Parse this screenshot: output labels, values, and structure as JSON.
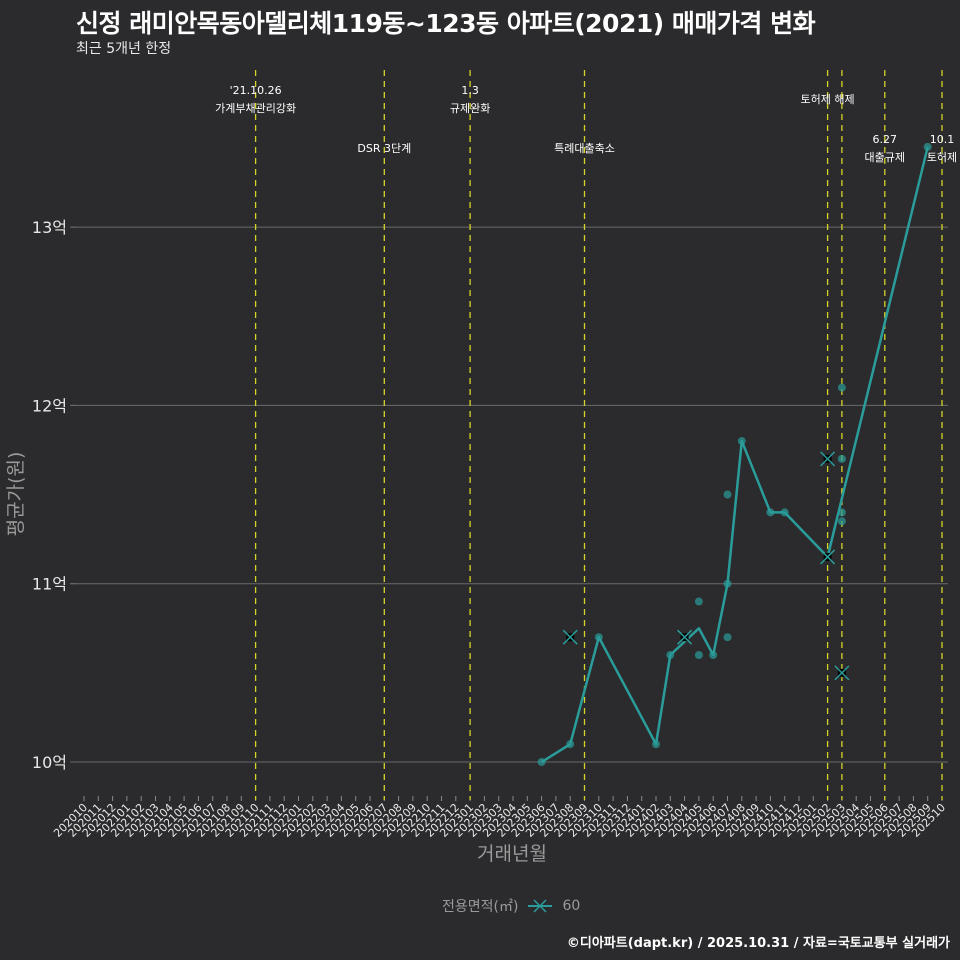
{
  "title": "신정 래미안목동아델리체119동~123동 아파트(2021) 매매가격 변화",
  "subtitle": "최근 5개년 한정",
  "caption": "©디아파트(dapt.kr) / 2025.10.31 / 자료=국토교통부 실거래가",
  "legend": {
    "title": "전용면적(㎡)",
    "items": [
      {
        "label": "60",
        "color": "#2a9d9a",
        "icon": "line-cross-icon"
      }
    ]
  },
  "colors": {
    "background": "#2b2b2d",
    "line": "#2a9d9a",
    "grid": "#6a6a6a",
    "event_line": "#d4d42a",
    "text": "#ffffff",
    "axis_title": "#9a9a9a"
  },
  "chart_data": {
    "type": "line",
    "title": "신정 래미안목동아델리체119동~123동 아파트(2021) 매매가격 변화",
    "subtitle": "최근 5개년 한정",
    "xlabel": "거래년월",
    "ylabel": "평균가(원)",
    "y_ticks": [
      {
        "value": 10,
        "label": "10억"
      },
      {
        "value": 11,
        "label": "11억"
      },
      {
        "value": 12,
        "label": "12억"
      },
      {
        "value": 13,
        "label": "13억"
      }
    ],
    "ylim": [
      9.85,
      13.85
    ],
    "grid": "horizontal",
    "legend_position": "bottom",
    "categories": [
      "202010",
      "202011",
      "202012",
      "202101",
      "202102",
      "202103",
      "202104",
      "202105",
      "202106",
      "202107",
      "202108",
      "202109",
      "202110",
      "202111",
      "202112",
      "202201",
      "202202",
      "202203",
      "202204",
      "202205",
      "202206",
      "202207",
      "202208",
      "202209",
      "202210",
      "202211",
      "202212",
      "202301",
      "202302",
      "202303",
      "202304",
      "202305",
      "202306",
      "202307",
      "202308",
      "202309",
      "202310",
      "202311",
      "202312",
      "202401",
      "202402",
      "202403",
      "202404",
      "202405",
      "202406",
      "202407",
      "202408",
      "202409",
      "202410",
      "202411",
      "202412",
      "202501",
      "202502",
      "202503",
      "202504",
      "202505",
      "202506",
      "202507",
      "202508",
      "202509",
      "202510"
    ],
    "series": [
      {
        "name": "60",
        "line": [
          {
            "x": "202306",
            "y": 10.0
          },
          {
            "x": "202308",
            "y": 10.1
          },
          {
            "x": "202310",
            "y": 10.7
          },
          {
            "x": "202402",
            "y": 10.1
          },
          {
            "x": "202403",
            "y": 10.6
          },
          {
            "x": "202405",
            "y": 10.75
          },
          {
            "x": "202406",
            "y": 10.6
          },
          {
            "x": "202407",
            "y": 11.0
          },
          {
            "x": "202408",
            "y": 11.8
          },
          {
            "x": "202410",
            "y": 11.4
          },
          {
            "x": "202411",
            "y": 11.4
          },
          {
            "x": "202502",
            "y": 11.15
          },
          {
            "x": "202509",
            "y": 13.45
          }
        ],
        "points": [
          {
            "x": "202306",
            "y": 10.0,
            "shape": "dot"
          },
          {
            "x": "202308",
            "y": 10.1,
            "shape": "dot"
          },
          {
            "x": "202308",
            "y": 10.7,
            "shape": "cross"
          },
          {
            "x": "202310",
            "y": 10.7,
            "shape": "dot"
          },
          {
            "x": "202402",
            "y": 10.1,
            "shape": "dot"
          },
          {
            "x": "202403",
            "y": 10.6,
            "shape": "dot"
          },
          {
            "x": "202404",
            "y": 10.7,
            "shape": "cross"
          },
          {
            "x": "202405",
            "y": 10.9,
            "shape": "dot"
          },
          {
            "x": "202405",
            "y": 10.6,
            "shape": "dot"
          },
          {
            "x": "202406",
            "y": 10.6,
            "shape": "dot"
          },
          {
            "x": "202407",
            "y": 11.5,
            "shape": "dot"
          },
          {
            "x": "202407",
            "y": 11.0,
            "shape": "dot"
          },
          {
            "x": "202407",
            "y": 10.7,
            "shape": "dot"
          },
          {
            "x": "202408",
            "y": 11.8,
            "shape": "dot"
          },
          {
            "x": "202410",
            "y": 11.4,
            "shape": "dot"
          },
          {
            "x": "202411",
            "y": 11.4,
            "shape": "dot"
          },
          {
            "x": "202502",
            "y": 11.7,
            "shape": "cross"
          },
          {
            "x": "202502",
            "y": 11.15,
            "shape": "cross"
          },
          {
            "x": "202503",
            "y": 12.1,
            "shape": "dot"
          },
          {
            "x": "202503",
            "y": 11.7,
            "shape": "dot"
          },
          {
            "x": "202503",
            "y": 11.4,
            "shape": "dot"
          },
          {
            "x": "202503",
            "y": 11.35,
            "shape": "dot"
          },
          {
            "x": "202503",
            "y": 10.5,
            "shape": "cross"
          },
          {
            "x": "202509",
            "y": 13.45,
            "shape": "dot"
          }
        ]
      }
    ],
    "annotations": [
      {
        "x": "202110",
        "line1": "'21.10.26",
        "line2": "가계부채관리강화",
        "row": 1
      },
      {
        "x": "202207",
        "line1": "",
        "line2": "DSR 3단계",
        "row": 2
      },
      {
        "x": "202301",
        "line1": "1.3",
        "line2": "규제완화",
        "row": 1
      },
      {
        "x": "202309",
        "line1": "",
        "line2": "특례대출축소",
        "row": 2
      },
      {
        "x": "202502",
        "line1": "",
        "line2": "토허제 해제",
        "row": 0
      },
      {
        "x": "202503",
        "line1": "",
        "line2": "",
        "row": 0
      },
      {
        "x": "202506",
        "line1": "6.27",
        "line2": "대출규제",
        "row": 3
      },
      {
        "x": "202510",
        "line1": "10.1",
        "line2": "토허제",
        "row": 3
      }
    ]
  }
}
